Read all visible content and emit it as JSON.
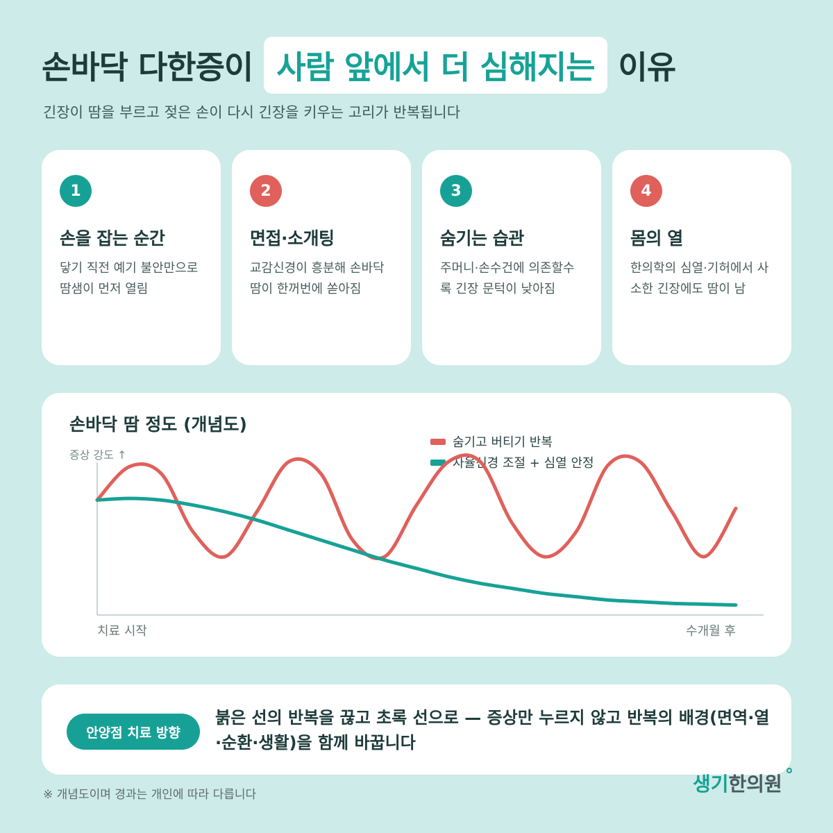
{
  "header": {
    "title_before": "손바닥 다한증이",
    "title_highlight": "사람 앞에서 더 심해지는",
    "title_after": "이유",
    "subtitle": "긴장이 땀을 부르고 젖은 손이 다시 긴장을 키우는 고리가 반복됩니다"
  },
  "cards": [
    {
      "number": "1",
      "title": "손을 잡는 순간",
      "desc": "닿기 직전 예기 불안만으로 땀샘이 먼저 열림",
      "color": "#17a196"
    },
    {
      "number": "2",
      "title": "면접·소개팅",
      "desc": "교감신경이 흥분해 손바닥 땀이 한꺼번에 쏟아짐",
      "color": "#e0605b"
    },
    {
      "number": "3",
      "title": "숨기는 습관",
      "desc": "주머니·손수건에 의존할수록 긴장 문턱이 낮아짐",
      "color": "#17a196"
    },
    {
      "number": "4",
      "title": "몸의 열",
      "desc": "한의학의 심열·기허에서 사소한 긴장에도 땀이 남",
      "color": "#e0605b"
    }
  ],
  "chart_data": {
    "type": "line",
    "title": "손바닥 땀 정도 (개념도)",
    "ylabel": "증상 강도 ↑",
    "x_start_label": "치료 시작",
    "x_end_label": "수개월 후",
    "legend_position": "top-right",
    "grid": false,
    "x": [
      0,
      0.05,
      0.1,
      0.15,
      0.2,
      0.25,
      0.3,
      0.35,
      0.4,
      0.45,
      0.5,
      0.55,
      0.6,
      0.65,
      0.7,
      0.75,
      0.8,
      0.85,
      0.9,
      0.95,
      1.0
    ],
    "ylim": [
      0,
      1
    ],
    "series": [
      {
        "name": "숨기고 버티기 반복",
        "color": "#e0605b",
        "values": [
          0.69,
          0.89,
          0.85,
          0.5,
          0.35,
          0.62,
          0.92,
          0.85,
          0.45,
          0.35,
          0.66,
          0.92,
          0.92,
          0.55,
          0.35,
          0.5,
          0.9,
          0.92,
          0.62,
          0.35,
          0.64
        ]
      },
      {
        "name": "자율신경 조절 + 심열 안정",
        "color": "#17a196",
        "values": [
          0.69,
          0.7,
          0.69,
          0.66,
          0.62,
          0.57,
          0.51,
          0.45,
          0.39,
          0.33,
          0.28,
          0.23,
          0.19,
          0.16,
          0.13,
          0.11,
          0.09,
          0.08,
          0.07,
          0.065,
          0.06
        ]
      }
    ]
  },
  "direction": {
    "label": "안양점 치료 방향",
    "text": "붉은 선의 반복을 끊고 초록 선으로 — 증상만 누르지 않고 반복의 배경(면역·열·순환·생활)을 함께 바꿉니다"
  },
  "footnote": "※ 개념도이며 경과는 개인에 따라 다릅니다",
  "logo": {
    "part1": "생기",
    "part2": "한의원"
  }
}
